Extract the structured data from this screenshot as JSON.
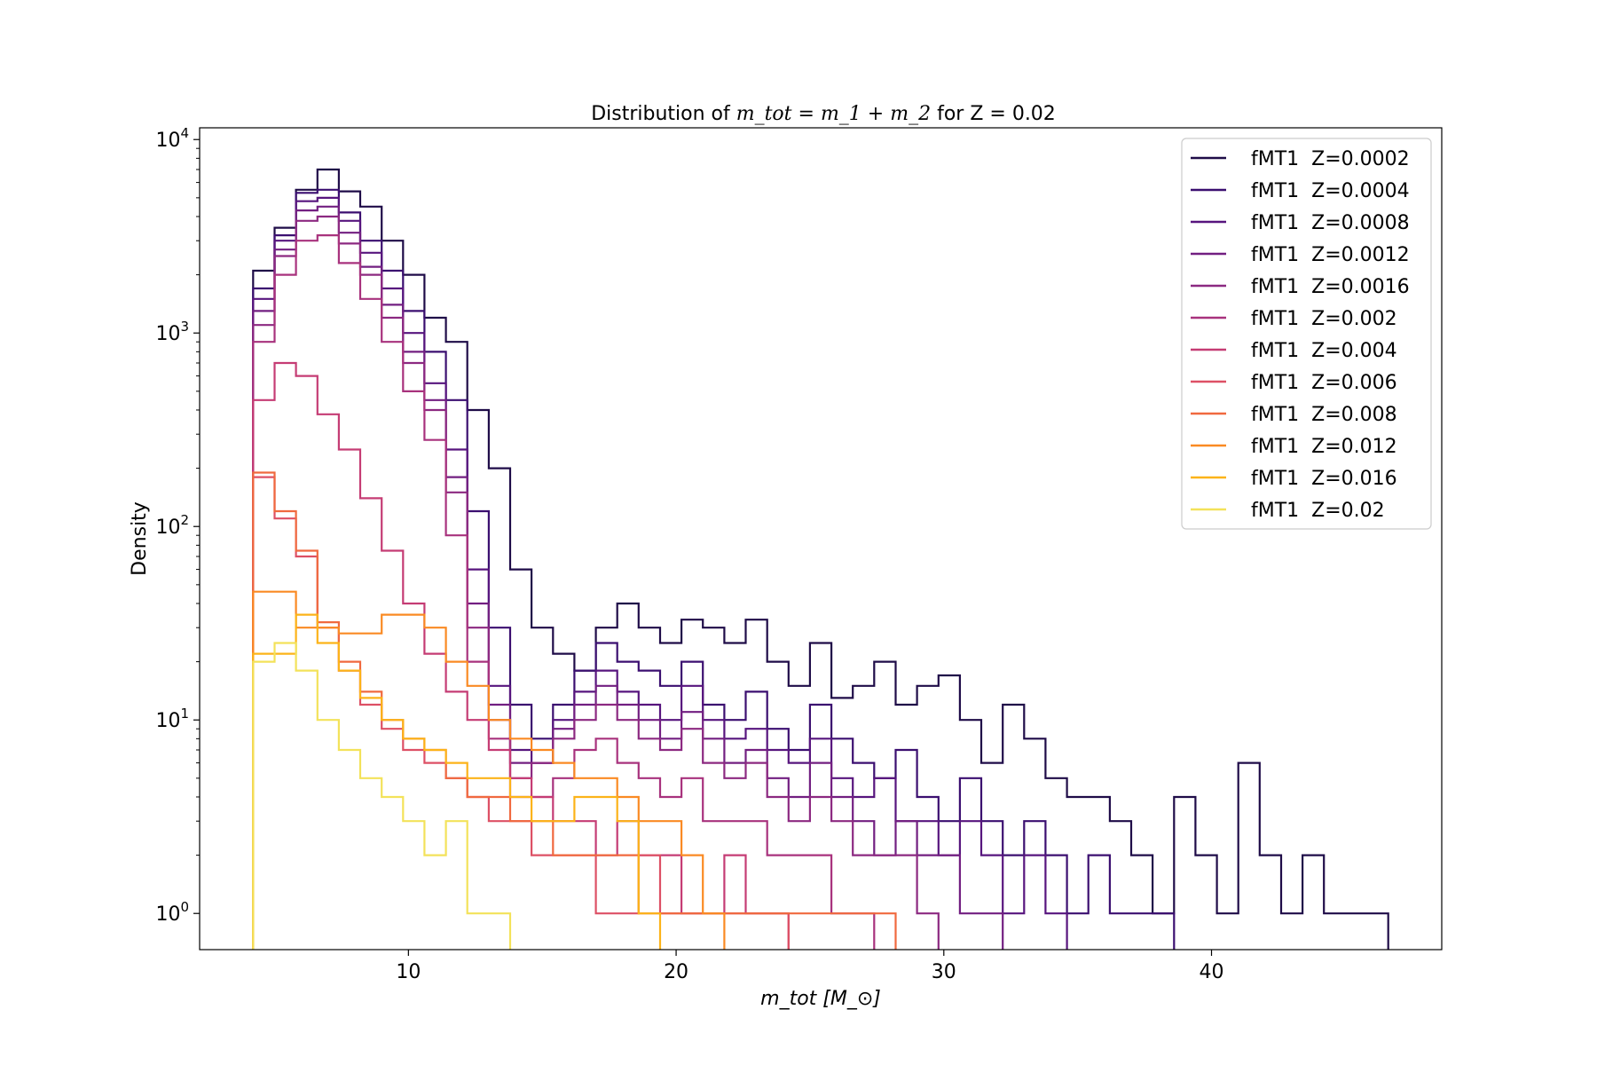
{
  "chart_data": {
    "type": "histogram-step",
    "title_prefix": "Distribution of ",
    "title_math": "m_tot = m_1 + m_2",
    "title_suffix": " for Z = 0.02",
    "xlabel_math": "m_tot [M_⊙]",
    "ylabel": "Density",
    "xlim": [
      2.2,
      48.6
    ],
    "ylim": [
      0.65,
      11500
    ],
    "yscale": "log",
    "xticks": [
      {
        "value": 10,
        "label": "10"
      },
      {
        "value": 20,
        "label": "20"
      },
      {
        "value": 30,
        "label": "30"
      },
      {
        "value": 40,
        "label": "40"
      }
    ],
    "yticks": [
      {
        "value": 1,
        "base": "10",
        "exp": "0"
      },
      {
        "value": 10,
        "base": "10",
        "exp": "1"
      },
      {
        "value": 100,
        "base": "10",
        "exp": "2"
      },
      {
        "value": 1000,
        "base": "10",
        "exp": "3"
      },
      {
        "value": 10000,
        "base": "10",
        "exp": "4"
      }
    ],
    "legend_position": "upper-right",
    "series": [
      {
        "name": "fMT1  Z=0.0002",
        "color": "#1f0c48",
        "edges": [
          4.2,
          5.0,
          5.8,
          6.6,
          7.4,
          8.2,
          9.0,
          9.8,
          10.6,
          11.4,
          12.2,
          13.0,
          13.8,
          14.6,
          15.4,
          16.2,
          17.0,
          17.8,
          18.6,
          19.4,
          20.2,
          21.0,
          21.8,
          22.6,
          23.4,
          24.2,
          25.0,
          25.8,
          26.6,
          27.4,
          28.2,
          29.0,
          29.8,
          30.6,
          31.4,
          32.2,
          33.0,
          33.8,
          34.6,
          35.4,
          36.2,
          37.0,
          37.8,
          38.6,
          39.4,
          40.2,
          41.0,
          41.8,
          42.6,
          43.4,
          44.2,
          45.0,
          45.8,
          46.6
        ],
        "values": [
          2100,
          3500,
          5500,
          7000,
          5400,
          4500,
          3000,
          2000,
          1200,
          900,
          400,
          200,
          60,
          30,
          22,
          18,
          30,
          40,
          30,
          25,
          33,
          30,
          25,
          33,
          20,
          15,
          25,
          13,
          15,
          20,
          12,
          15,
          17,
          10,
          6,
          12,
          8,
          5,
          4,
          4,
          3,
          2,
          1,
          4,
          2,
          1,
          6,
          2,
          1,
          2,
          1,
          1,
          1
        ]
      },
      {
        "name": "fMT1  Z=0.0004",
        "color": "#3b0f70",
        "edges": [
          4.2,
          5.0,
          5.8,
          6.6,
          7.4,
          8.2,
          9.0,
          9.8,
          10.6,
          11.4,
          12.2,
          13.0,
          13.8,
          14.6,
          15.4,
          16.2,
          17.0,
          17.8,
          18.6,
          19.4,
          20.2,
          21.0,
          21.8,
          22.6,
          23.4,
          24.2,
          25.0,
          25.8,
          26.6,
          27.4,
          28.2,
          29.0,
          29.8,
          30.6,
          31.4,
          32.2,
          33.0,
          33.8,
          34.6,
          35.4,
          36.2,
          37.0,
          37.8,
          38.6
        ],
        "values": [
          1700,
          3200,
          5300,
          5500,
          4200,
          3000,
          2100,
          1300,
          800,
          450,
          120,
          30,
          12,
          8,
          12,
          18,
          25,
          20,
          18,
          15,
          20,
          12,
          10,
          14,
          9,
          7,
          12,
          8,
          6,
          5,
          7,
          4,
          3,
          5,
          3,
          2,
          3,
          2,
          1,
          2,
          1,
          1,
          1
        ]
      },
      {
        "name": "fMT1  Z=0.0008",
        "color": "#57157e",
        "edges": [
          4.2,
          5.0,
          5.8,
          6.6,
          7.4,
          8.2,
          9.0,
          9.8,
          10.6,
          11.4,
          12.2,
          13.0,
          13.8,
          14.6,
          15.4,
          16.2,
          17.0,
          17.8,
          18.6,
          19.4,
          20.2,
          21.0,
          21.8,
          22.6,
          23.4,
          24.2,
          25.0,
          25.8,
          26.6,
          27.4,
          28.2,
          29.0,
          29.8,
          30.6,
          31.4,
          32.2,
          33.0,
          33.8,
          34.6
        ],
        "values": [
          1500,
          3000,
          4800,
          5000,
          3800,
          2600,
          1700,
          1000,
          550,
          250,
          60,
          15,
          7,
          6,
          10,
          14,
          18,
          14,
          12,
          10,
          15,
          10,
          8,
          9,
          7,
          6,
          8,
          5,
          4,
          5,
          3,
          3,
          2,
          3,
          2,
          1,
          2,
          1
        ]
      },
      {
        "name": "fMT1  Z=0.0012",
        "color": "#721f81",
        "edges": [
          4.2,
          5.0,
          5.8,
          6.6,
          7.4,
          8.2,
          9.0,
          9.8,
          10.6,
          11.4,
          12.2,
          13.0,
          13.8,
          14.6,
          15.4,
          16.2,
          17.0,
          17.8,
          18.6,
          19.4,
          20.2,
          21.0,
          21.8,
          22.6,
          23.4,
          24.2,
          25.0,
          25.8,
          26.6,
          27.4,
          28.2,
          29.0,
          29.8,
          30.6,
          31.4,
          32.2
        ],
        "values": [
          1300,
          2700,
          4300,
          4500,
          3300,
          2200,
          1400,
          800,
          450,
          180,
          40,
          12,
          6,
          6,
          9,
          12,
          15,
          12,
          10,
          8,
          11,
          8,
          6,
          7,
          5,
          4,
          6,
          4,
          3,
          2,
          3,
          2,
          2,
          1,
          1
        ]
      },
      {
        "name": "fMT1  Z=0.0016",
        "color": "#8c2981",
        "edges": [
          4.2,
          5.0,
          5.8,
          6.6,
          7.4,
          8.2,
          9.0,
          9.8,
          10.6,
          11.4,
          12.2,
          13.0,
          13.8,
          14.6,
          15.4,
          16.2,
          17.0,
          17.8,
          18.6,
          19.4,
          20.2,
          21.0,
          21.8,
          22.6,
          23.4,
          24.2,
          25.0,
          25.8,
          26.6,
          27.4,
          28.2,
          29.0,
          29.8
        ],
        "values": [
          1100,
          2500,
          3800,
          4000,
          2900,
          2000,
          1200,
          700,
          400,
          150,
          30,
          10,
          5,
          6,
          8,
          10,
          12,
          10,
          8,
          7,
          9,
          6,
          5,
          6,
          4,
          3,
          4,
          3,
          2,
          2,
          2,
          1
        ]
      },
      {
        "name": "fMT1  Z=0.002",
        "color": "#a8327d",
        "edges": [
          4.2,
          5.0,
          5.8,
          6.6,
          7.4,
          8.2,
          9.0,
          9.8,
          10.6,
          11.4,
          12.2,
          13.0,
          13.8,
          14.6,
          15.4,
          16.2,
          17.0,
          17.8,
          18.6,
          19.4,
          20.2,
          21.0,
          21.8,
          22.6,
          23.4,
          24.2,
          25.0,
          25.8,
          26.6,
          27.4
        ],
        "values": [
          900,
          2000,
          3000,
          3200,
          2300,
          1500,
          900,
          500,
          280,
          90,
          20,
          8,
          4,
          4,
          5,
          7,
          8,
          6,
          5,
          4,
          5,
          3,
          3,
          3,
          2,
          2,
          2,
          1,
          1
        ]
      },
      {
        "name": "fMT1  Z=0.004",
        "color": "#c53c74",
        "edges": [
          4.2,
          5.0,
          5.8,
          6.6,
          7.4,
          8.2,
          9.0,
          9.8,
          10.6,
          11.4,
          12.2,
          13.0,
          13.8,
          14.6,
          15.4,
          16.2,
          17.0,
          17.8,
          18.6,
          19.4,
          20.2,
          21.0,
          21.8,
          22.6,
          23.4,
          24.2
        ],
        "values": [
          450,
          700,
          600,
          380,
          250,
          140,
          75,
          40,
          22,
          14,
          10,
          7,
          5,
          4,
          3,
          3,
          2,
          3,
          2,
          2,
          1,
          1,
          2,
          1,
          1
        ]
      },
      {
        "name": "fMT1  Z=0.006",
        "color": "#dd5065",
        "edges": [
          4.2,
          5.0,
          5.8,
          6.6,
          7.4,
          8.2,
          9.0,
          9.8,
          10.6,
          11.4,
          12.2,
          13.0,
          13.8,
          14.6,
          15.4,
          16.2,
          17.0,
          17.8,
          18.6,
          19.4,
          20.2,
          21.0,
          21.8,
          22.6,
          23.4,
          24.2
        ],
        "values": [
          180,
          110,
          70,
          30,
          18,
          12,
          9,
          7,
          6,
          5,
          4,
          3,
          3,
          2,
          2,
          2,
          1,
          1,
          2,
          1,
          1,
          1,
          1,
          1,
          1
        ]
      },
      {
        "name": "fMT1  Z=0.008",
        "color": "#f0693f",
        "edges": [
          4.2,
          5.0,
          5.8,
          6.6,
          7.4,
          8.2,
          9.0,
          9.8,
          10.6,
          11.4,
          12.2,
          13.0,
          13.8,
          14.6,
          15.4,
          16.2,
          17.0,
          17.8,
          18.6,
          19.4,
          20.2,
          21.0,
          21.8,
          22.6,
          23.4,
          24.2,
          25.0,
          25.8,
          26.6,
          27.4,
          28.2
        ],
        "values": [
          190,
          120,
          75,
          32,
          20,
          14,
          10,
          8,
          7,
          5,
          4,
          4,
          3,
          3,
          2,
          2,
          2,
          2,
          1,
          1,
          1,
          1,
          1,
          1,
          1,
          1,
          1,
          1,
          1,
          1
        ]
      },
      {
        "name": "fMT1  Z=0.012",
        "color": "#fa8a23",
        "edges": [
          4.2,
          5.0,
          5.8,
          6.6,
          7.4,
          8.2,
          9.0,
          9.8,
          10.6,
          11.4,
          12.2,
          13.0,
          13.8,
          14.6,
          15.4,
          16.2,
          17.0,
          17.8,
          18.6,
          19.4,
          20.2,
          21.0,
          21.8
        ],
        "values": [
          46,
          46,
          30,
          30,
          28,
          28,
          35,
          35,
          30,
          20,
          15,
          10,
          8,
          7,
          6,
          5,
          5,
          4,
          3,
          3,
          2,
          1
        ]
      },
      {
        "name": "fMT1  Z=0.016",
        "color": "#fcb319",
        "edges": [
          4.2,
          5.0,
          5.8,
          6.6,
          7.4,
          8.2,
          9.0,
          9.8,
          10.6,
          11.4,
          12.2,
          13.0,
          13.8,
          14.6,
          15.4,
          16.2,
          17.0,
          17.8,
          18.6,
          19.4
        ],
        "values": [
          22,
          22,
          35,
          25,
          18,
          13,
          10,
          8,
          7,
          6,
          5,
          5,
          4,
          3,
          3,
          4,
          4,
          3,
          1
        ]
      },
      {
        "name": "fMT1  Z=0.02",
        "color": "#f3e25a",
        "edges": [
          4.2,
          5.0,
          5.8,
          6.6,
          7.4,
          8.2,
          9.0,
          9.8,
          10.6,
          11.4,
          12.2,
          13.0,
          13.8
        ],
        "values": [
          20,
          25,
          18,
          10,
          7,
          5,
          4,
          3,
          2,
          3,
          1,
          1
        ]
      }
    ]
  }
}
